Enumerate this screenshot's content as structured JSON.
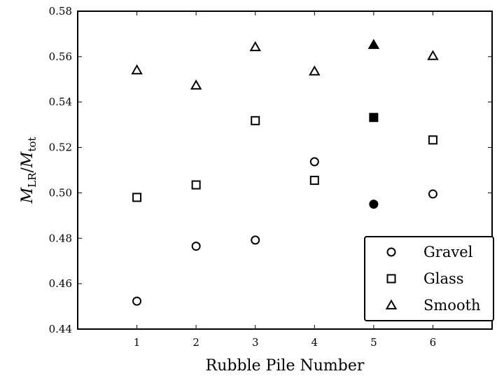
{
  "chart_data": {
    "type": "scatter",
    "xlabel": "Rubble Pile Number",
    "ylabel_main": "M",
    "ylabel_sub1": "LR",
    "ylabel_sep": "/",
    "ylabel_sub2": "tot",
    "xlim": [
      0,
      7
    ],
    "ylim": [
      0.44,
      0.58
    ],
    "xticks": [
      "1",
      "2",
      "3",
      "4",
      "5",
      "6"
    ],
    "yticks": [
      "0.44",
      "0.46",
      "0.48",
      "0.50",
      "0.52",
      "0.54",
      "0.56",
      "0.58"
    ],
    "legend_position": "bottom-right",
    "series": [
      {
        "name": "Gravel",
        "marker": "circle",
        "points": [
          {
            "x": 1,
            "y": 0.4523,
            "filled": false
          },
          {
            "x": 2,
            "y": 0.4765,
            "filled": false
          },
          {
            "x": 3,
            "y": 0.4792,
            "filled": false
          },
          {
            "x": 4,
            "y": 0.5137,
            "filled": false
          },
          {
            "x": 5,
            "y": 0.495,
            "filled": true
          },
          {
            "x": 6,
            "y": 0.4995,
            "filled": false
          }
        ]
      },
      {
        "name": "Glass",
        "marker": "square",
        "points": [
          {
            "x": 1,
            "y": 0.498,
            "filled": false
          },
          {
            "x": 2,
            "y": 0.5035,
            "filled": false
          },
          {
            "x": 3,
            "y": 0.5318,
            "filled": false
          },
          {
            "x": 4,
            "y": 0.5055,
            "filled": false
          },
          {
            "x": 5,
            "y": 0.5332,
            "filled": true
          },
          {
            "x": 6,
            "y": 0.5233,
            "filled": false
          }
        ]
      },
      {
        "name": "Smooth",
        "marker": "triangle",
        "points": [
          {
            "x": 1,
            "y": 0.554,
            "filled": false
          },
          {
            "x": 2,
            "y": 0.5473,
            "filled": false
          },
          {
            "x": 3,
            "y": 0.5642,
            "filled": false
          },
          {
            "x": 4,
            "y": 0.5535,
            "filled": false
          },
          {
            "x": 5,
            "y": 0.5652,
            "filled": true
          },
          {
            "x": 6,
            "y": 0.5603,
            "filled": false
          }
        ]
      }
    ]
  }
}
